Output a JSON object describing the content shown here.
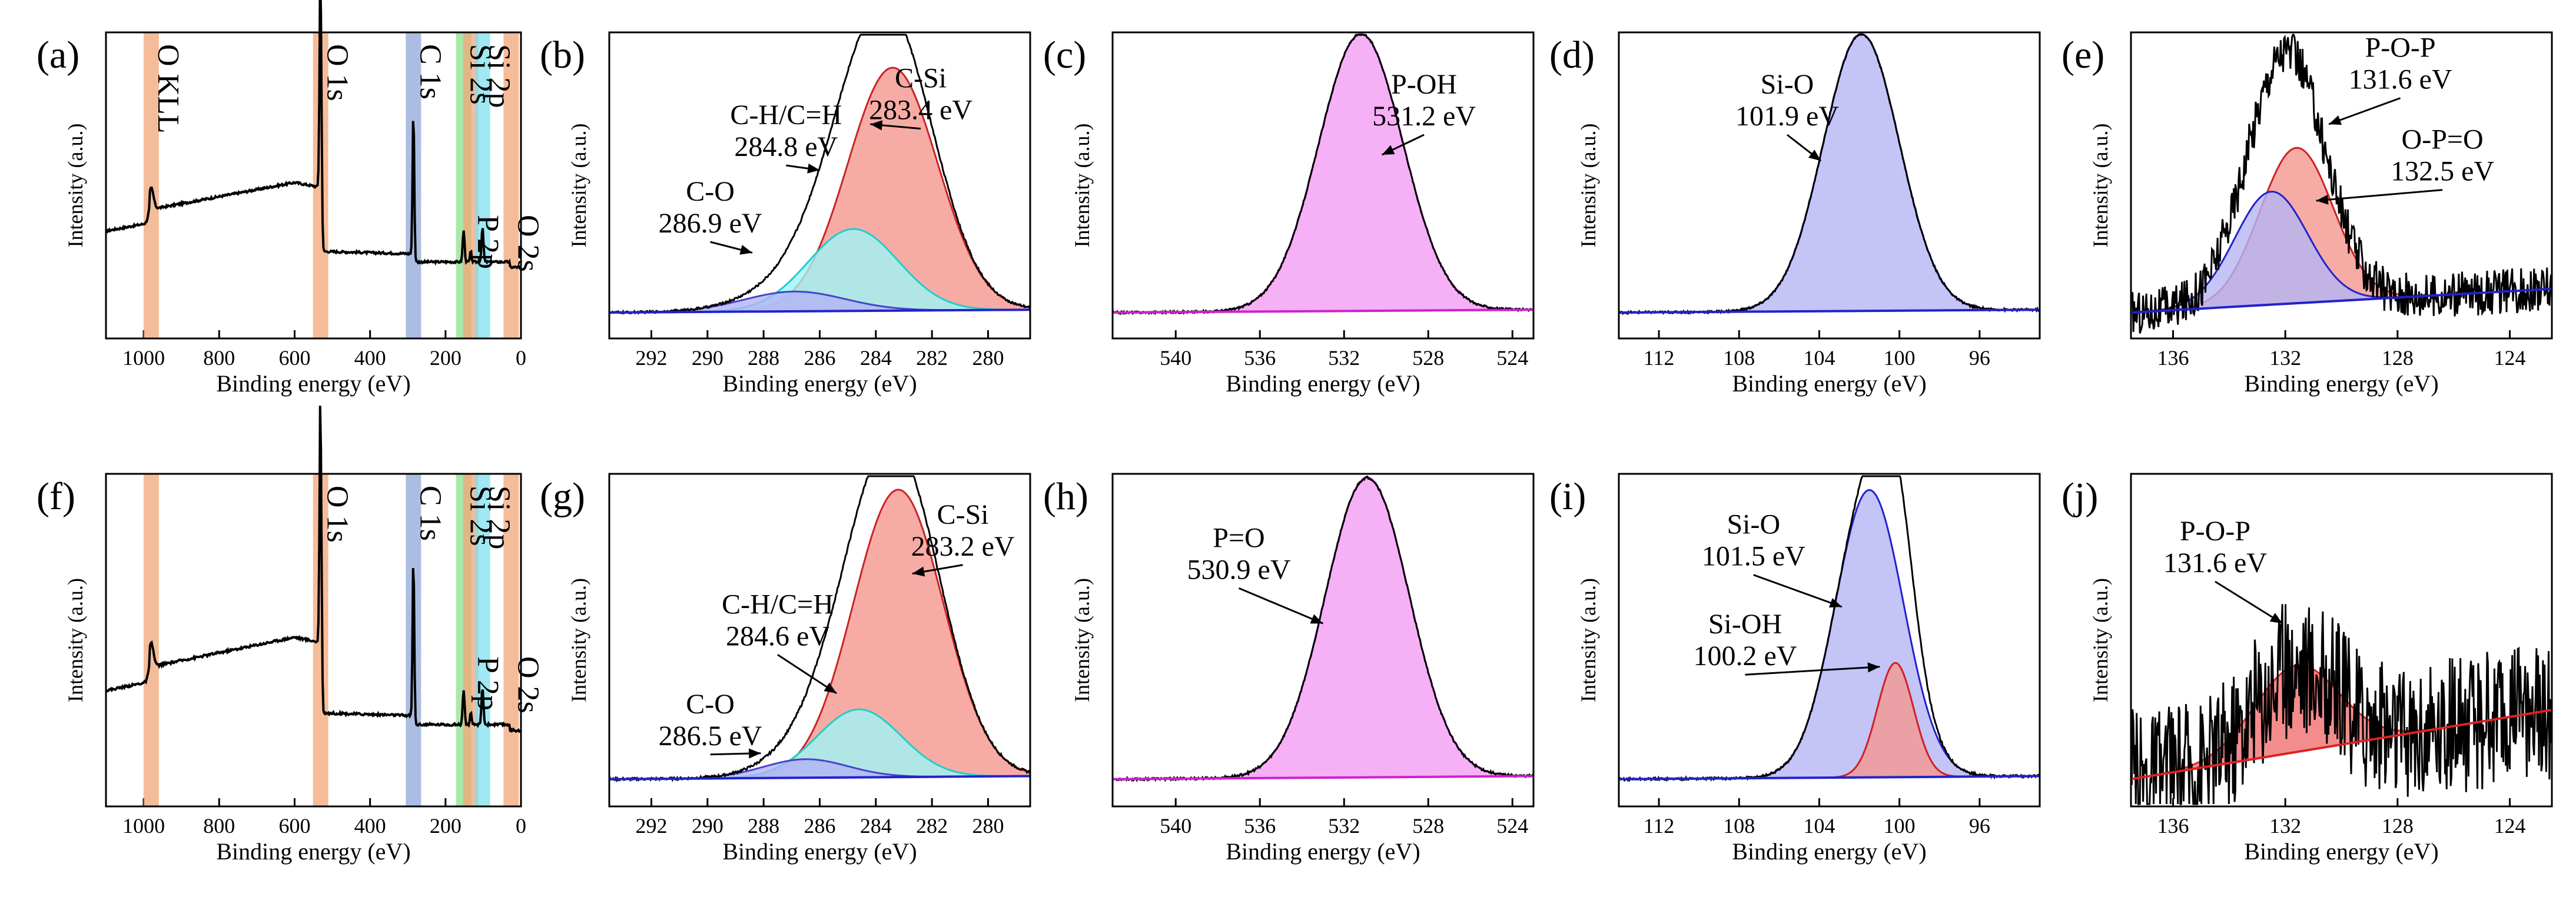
{
  "chart_data": [
    {
      "id": "a",
      "label": "(a)",
      "type": "line",
      "kind": "survey",
      "xlabel": "Binding energy (eV)",
      "ylabel": "Intensity (a.u.)",
      "xlim": [
        1100,
        0
      ],
      "ticks": [
        1000,
        800,
        600,
        400,
        200,
        0
      ],
      "tick_labels": [
        "1000",
        "800",
        "600",
        "400",
        "200",
        "0"
      ],
      "bands": [
        {
          "center": 980,
          "color": "#f2a578"
        },
        {
          "center": 531,
          "color": "#f2a578"
        },
        {
          "center": 285,
          "color": "#8fa7d8"
        },
        {
          "center": 152,
          "color": "#8ee08e"
        },
        {
          "center": 133,
          "color": "#f2a578"
        },
        {
          "center": 102,
          "color": "#7fe0f0"
        },
        {
          "center": 26,
          "color": "#f2a578"
        }
      ],
      "peak_labels": [
        {
          "text": "O KLL",
          "x": 980
        },
        {
          "text": "O 1s",
          "x": 531
        },
        {
          "text": "C 1s",
          "x": 285
        },
        {
          "text": "Si 2s",
          "x": 152
        },
        {
          "text": "P 2p",
          "x": 133,
          "low": true
        },
        {
          "text": "Si 2p",
          "x": 102
        },
        {
          "text": "O 2s",
          "x": 26,
          "low": true
        }
      ]
    },
    {
      "id": "b",
      "label": "(b)",
      "type": "area",
      "xlabel": "Binding energy (eV)",
      "ylabel": "Intensity (a.u.)",
      "xlim": [
        293.5,
        278.5
      ],
      "ticks": [
        292,
        290,
        288,
        286,
        284,
        282,
        280
      ],
      "tick_labels": [
        "292",
        "290",
        "288",
        "286",
        "284",
        "282",
        "280"
      ],
      "peaks": [
        {
          "name": "C-Si",
          "energy": "283.4 eV",
          "center": 283.4,
          "height": 0.86,
          "width": 1.6,
          "fill": "#f4978e",
          "stroke": "#cc2222"
        },
        {
          "name": "C-H/C=H",
          "energy": "284.8 eV",
          "center": 284.8,
          "height": 0.29,
          "width": 1.6,
          "fill": "#9ff5f5",
          "stroke": "#22cccc"
        },
        {
          "name": "C-O",
          "energy": "286.9 eV",
          "center": 286.9,
          "height": 0.07,
          "width": 1.8,
          "fill": "#b3b3f5",
          "stroke": "#4444cc"
        }
      ]
    },
    {
      "id": "c",
      "label": "(c)",
      "type": "area",
      "xlabel": "Binding energy (eV)",
      "ylabel": "Intensity (a.u.)",
      "xlim": [
        543,
        523
      ],
      "ticks": [
        540,
        536,
        532,
        528,
        524
      ],
      "tick_labels": [
        "540",
        "536",
        "532",
        "528",
        "524"
      ],
      "peaks": [
        {
          "name": "P-OH",
          "energy": "531.2 eV",
          "center": 531.2,
          "height": 0.98,
          "width": 2.0,
          "fill": "#f49cf4",
          "stroke": "#cc22cc"
        }
      ]
    },
    {
      "id": "d",
      "label": "(d)",
      "type": "area",
      "xlabel": "Binding energy (eV)",
      "ylabel": "Intensity (a.u.)",
      "xlim": [
        114,
        93
      ],
      "ticks": [
        112,
        108,
        104,
        100,
        96
      ],
      "tick_labels": [
        "112",
        "108",
        "104",
        "100",
        "96"
      ],
      "peaks": [
        {
          "name": "Si-O",
          "energy": "101.9 eV",
          "center": 101.9,
          "height": 0.98,
          "width": 1.9,
          "fill": "#b5b5f5",
          "stroke": "#2222cc"
        }
      ]
    },
    {
      "id": "e",
      "label": "(e)",
      "type": "area",
      "noisy": true,
      "xlabel": "Binding energy (eV)",
      "ylabel": "Intensity (a.u.)",
      "xlim": [
        137.5,
        122.5
      ],
      "ticks": [
        136,
        132,
        128,
        124
      ],
      "tick_labels": [
        "136",
        "132",
        "128",
        "124"
      ],
      "peaks": [
        {
          "name": "P-O-P",
          "energy": "131.6 eV",
          "center": 131.6,
          "height": 0.55,
          "width": 1.3,
          "fill": "#f4978e",
          "stroke": "#cc2222"
        },
        {
          "name": "O-P=O",
          "energy": "132.5 eV",
          "center": 132.5,
          "height": 0.4,
          "width": 1.3,
          "fill": "#b5b5f5",
          "stroke": "#2222cc"
        }
      ]
    },
    {
      "id": "f",
      "label": "(f)",
      "type": "line",
      "kind": "survey",
      "xlabel": "Binding energy (eV)",
      "ylabel": "Intensity (a.u.)",
      "xlim": [
        1100,
        0
      ],
      "ticks": [
        1000,
        800,
        600,
        400,
        200,
        0
      ],
      "tick_labels": [
        "1000",
        "800",
        "600",
        "400",
        "200",
        "0"
      ],
      "bands": [
        {
          "center": 980,
          "color": "#f2a578"
        },
        {
          "center": 531,
          "color": "#f2a578"
        },
        {
          "center": 285,
          "color": "#8fa7d8"
        },
        {
          "center": 152,
          "color": "#8ee08e"
        },
        {
          "center": 133,
          "color": "#f2a578"
        },
        {
          "center": 102,
          "color": "#7fe0f0"
        },
        {
          "center": 26,
          "color": "#f2a578"
        }
      ],
      "peak_labels": [
        {
          "text": "O 1s",
          "x": 531
        },
        {
          "text": "C 1s",
          "x": 285
        },
        {
          "text": "Si 2s",
          "x": 152
        },
        {
          "text": "P 2p",
          "x": 133,
          "low": true
        },
        {
          "text": "Si 2p",
          "x": 102
        },
        {
          "text": "O 2s",
          "x": 26,
          "low": true
        }
      ]
    },
    {
      "id": "g",
      "label": "(g)",
      "type": "area",
      "xlabel": "Binding energy (eV)",
      "ylabel": "Intensity (a.u.)",
      "xlim": [
        293.5,
        278.5
      ],
      "ticks": [
        292,
        290,
        288,
        286,
        284,
        282,
        280
      ],
      "tick_labels": [
        "292",
        "290",
        "288",
        "286",
        "284",
        "282",
        "280"
      ],
      "peaks": [
        {
          "name": "C-Si",
          "energy": "283.2 eV",
          "center": 283.2,
          "height": 0.93,
          "width": 1.6,
          "fill": "#f4978e",
          "stroke": "#cc2222"
        },
        {
          "name": "C-H/C=H",
          "energy": "284.6 eV",
          "center": 284.6,
          "height": 0.22,
          "width": 1.5,
          "fill": "#9ff5f5",
          "stroke": "#22cccc"
        },
        {
          "name": "C-O",
          "energy": "286.5 eV",
          "center": 286.5,
          "height": 0.06,
          "width": 1.5,
          "fill": "#b3b3f5",
          "stroke": "#4444cc"
        }
      ]
    },
    {
      "id": "h",
      "label": "(h)",
      "type": "area",
      "xlabel": "Binding energy (eV)",
      "ylabel": "Intensity (a.u.)",
      "xlim": [
        543,
        523
      ],
      "ticks": [
        540,
        536,
        532,
        528,
        524
      ],
      "tick_labels": [
        "540",
        "536",
        "532",
        "528",
        "524"
      ],
      "peaks": [
        {
          "name": "P=O",
          "energy": "530.9 eV",
          "center": 530.9,
          "height": 0.97,
          "width": 2.0,
          "fill": "#f49cf4",
          "stroke": "#cc22cc"
        }
      ]
    },
    {
      "id": "i",
      "label": "(i)",
      "type": "area",
      "xlabel": "Binding energy (eV)",
      "ylabel": "Intensity (a.u.)",
      "xlim": [
        114,
        93
      ],
      "ticks": [
        112,
        108,
        104,
        100,
        96
      ],
      "tick_labels": [
        "112",
        "108",
        "104",
        "100",
        "96"
      ],
      "peaks": [
        {
          "name": "Si-O",
          "energy": "101.5 eV",
          "center": 101.5,
          "height": 0.93,
          "width": 1.7,
          "fill": "#b5b5f5",
          "stroke": "#2222cc"
        },
        {
          "name": "Si-OH",
          "energy": "100.2 eV",
          "center": 100.2,
          "height": 0.37,
          "width": 0.9,
          "fill": "#f4978e",
          "stroke": "#cc2222"
        }
      ]
    },
    {
      "id": "j",
      "label": "(j)",
      "type": "area",
      "noisy": true,
      "xlabel": "Binding energy (eV)",
      "ylabel": "Intensity (a.u.)",
      "xlim": [
        137.5,
        122.5
      ],
      "ticks": [
        136,
        132,
        128,
        124
      ],
      "tick_labels": [
        "136",
        "132",
        "128",
        "124"
      ],
      "peaks": [
        {
          "name": "P-O-P",
          "energy": "131.6 eV",
          "center": 131.6,
          "height": 0.28,
          "width": 1.5,
          "fill": "#f07070",
          "stroke": "#dd2222"
        }
      ]
    }
  ]
}
